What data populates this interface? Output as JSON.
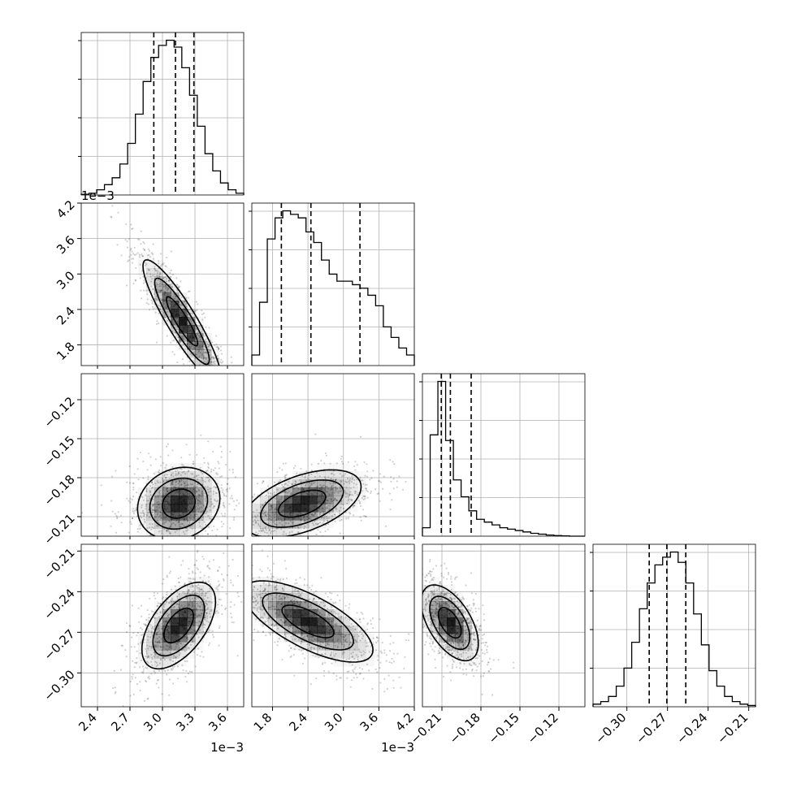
{
  "chart_data": {
    "type": "corner",
    "grid": true,
    "quantile_lines": [
      "dashed",
      "#000000"
    ],
    "offset_text": "1e−3",
    "colors": {
      "line": "#000000",
      "grid": "#b0b0b0",
      "points": "#000000",
      "density": "#000000"
    },
    "params": [
      {
        "range": [
          2.25,
          3.75
        ],
        "scale": 0.001,
        "ticks": [
          "2.4",
          "2.7",
          "3.0",
          "3.3",
          "3.6"
        ],
        "quantiles": [
          2.92,
          3.12,
          3.29
        ],
        "hist_counts": [
          0.4,
          1,
          3,
          6,
          10,
          18,
          30,
          47,
          66,
          80,
          87,
          90,
          86,
          74,
          58,
          40,
          24,
          14,
          7,
          3,
          1
        ]
      },
      {
        "range": [
          1.45,
          4.2
        ],
        "scale": 0.001,
        "ticks": [
          "1.8",
          "2.4",
          "3.0",
          "3.6",
          "4.2"
        ],
        "quantiles": [
          1.95,
          2.45,
          3.28
        ],
        "hist_counts": [
          3,
          18,
          36,
          42,
          44,
          43,
          42,
          38,
          35,
          30,
          26,
          24,
          24,
          23,
          22,
          20,
          17,
          11,
          8,
          5,
          3
        ]
      },
      {
        "range": [
          -0.225,
          -0.1
        ],
        "scale": 1,
        "ticks": [
          "−0.21",
          "−0.18",
          "−0.15",
          "−0.12"
        ],
        "quantiles": [
          -0.2105,
          -0.2035,
          -0.1875
        ],
        "hist_counts": [
          3,
          36,
          55,
          34,
          20,
          14,
          9,
          6,
          5,
          4,
          3,
          2.5,
          2,
          1.5,
          1,
          0.7,
          0.4,
          0.2,
          0.1,
          0,
          0
        ]
      },
      {
        "range": [
          -0.325,
          -0.205
        ],
        "scale": 1,
        "ticks": [
          "−0.30",
          "−0.27",
          "−0.24",
          "−0.21"
        ],
        "quantiles": [
          -0.2835,
          -0.2705,
          -0.2565
        ],
        "hist_counts": [
          1,
          2,
          4,
          8,
          15,
          25,
          38,
          48,
          55,
          58,
          60,
          56,
          48,
          36,
          24,
          14,
          8,
          4,
          2,
          1,
          0.5
        ]
      }
    ],
    "pairs": [
      {
        "row": 1,
        "col": 0,
        "mean": [
          3.18,
          2.2
        ],
        "sd": [
          0.18,
          0.52
        ],
        "rho": -0.9
      },
      {
        "row": 2,
        "col": 0,
        "mean": [
          3.15,
          -0.2
        ],
        "sd": [
          0.19,
          0.014
        ],
        "rho": 0.15
      },
      {
        "row": 2,
        "col": 1,
        "mean": [
          2.3,
          -0.2
        ],
        "sd": [
          0.5,
          0.013
        ],
        "rho": 0.5
      },
      {
        "row": 3,
        "col": 0,
        "mean": [
          3.15,
          -0.265
        ],
        "sd": [
          0.17,
          0.016
        ],
        "rho": 0.55
      },
      {
        "row": 3,
        "col": 1,
        "mean": [
          2.4,
          -0.262
        ],
        "sd": [
          0.55,
          0.015
        ],
        "rho": -0.7
      },
      {
        "row": 3,
        "col": 2,
        "mean": [
          -0.204,
          -0.263
        ],
        "sd": [
          0.011,
          0.014
        ],
        "rho": -0.55
      }
    ]
  }
}
